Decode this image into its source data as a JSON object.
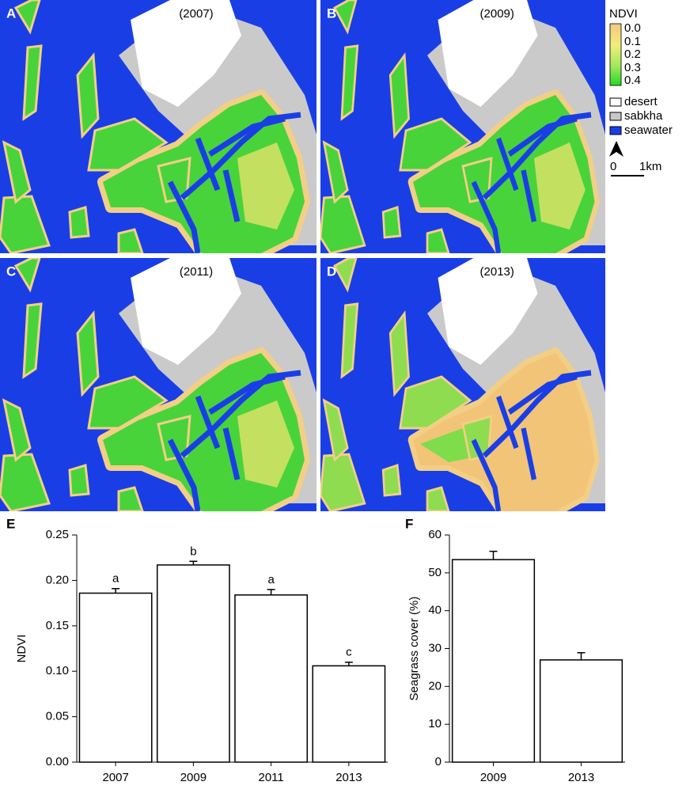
{
  "maps": {
    "panels": [
      {
        "letter": "A",
        "year": "(2007)"
      },
      {
        "letter": "B",
        "year": "(2009)"
      },
      {
        "letter": "C",
        "year": "(2011)"
      },
      {
        "letter": "D",
        "year": "(2013)"
      }
    ],
    "legend": {
      "title": "NDVI",
      "ticks": [
        "0.0",
        "0.1",
        "0.2",
        "0.3",
        "0.4"
      ],
      "classes": [
        "desert",
        "sabkha",
        "seawater"
      ],
      "scale": [
        "0",
        "1km"
      ]
    }
  },
  "chart_data": [
    {
      "type": "bar",
      "panel": "E",
      "ylabel": "NDVI",
      "categories": [
        "2007",
        "2009",
        "2011",
        "2013"
      ],
      "values": [
        0.186,
        0.217,
        0.184,
        0.106
      ],
      "errors": [
        0.005,
        0.004,
        0.006,
        0.004
      ],
      "letters": [
        "a",
        "b",
        "a",
        "c"
      ],
      "color": "#ffffff",
      "ylim": [
        0,
        0.25
      ],
      "yticks": [
        {
          "value": 0,
          "label": "0.00"
        },
        {
          "value": 0.05,
          "label": "0.05"
        },
        {
          "value": 0.1,
          "label": "0.10"
        },
        {
          "value": 0.15,
          "label": "0.15"
        },
        {
          "value": 0.2,
          "label": "0.20"
        },
        {
          "value": 0.25,
          "label": "0.25"
        }
      ]
    },
    {
      "type": "bar",
      "panel": "F",
      "ylabel": "Seagrass cover (%)",
      "categories": [
        "2009",
        "2013"
      ],
      "values": [
        53.5,
        27.0
      ],
      "errors": [
        2.2,
        1.9
      ],
      "color": "#ffffff",
      "ylim": [
        0,
        60
      ],
      "yticks": [
        0,
        10,
        20,
        30,
        40,
        50,
        60
      ]
    }
  ]
}
